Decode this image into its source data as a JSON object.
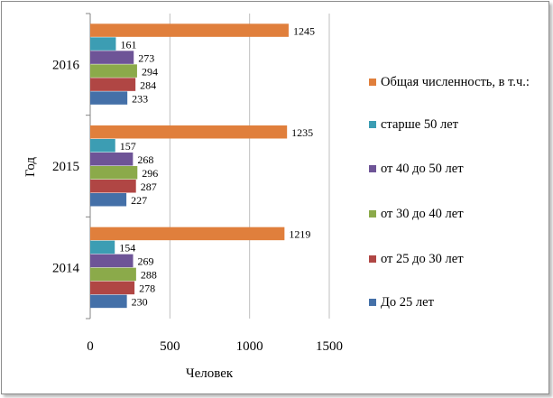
{
  "chart_data": {
    "type": "bar",
    "orientation": "horizontal",
    "title": "",
    "xlabel": "Человек",
    "ylabel": "Год",
    "xlim": [
      0,
      1500
    ],
    "xticks": [
      "0",
      "500",
      "1000",
      "1500"
    ],
    "xtick_values": [
      0,
      500,
      1000,
      1500
    ],
    "grid": true,
    "legend_position": "right",
    "categories": [
      "2016",
      "2015",
      "2014"
    ],
    "series": [
      {
        "name": "Общая численность, в т.ч.:",
        "color": "#E07F3C",
        "values": [
          1245,
          1235,
          1219
        ]
      },
      {
        "name": "старше 50 лет",
        "color": "#3C9DB3",
        "values": [
          161,
          157,
          154
        ]
      },
      {
        "name": "от 40 до 50 лет",
        "color": "#6E5497",
        "values": [
          273,
          268,
          269
        ]
      },
      {
        "name": "от 30 до 40 лет",
        "color": "#8BAA4A",
        "values": [
          294,
          296,
          288
        ]
      },
      {
        "name": "от 25 до 30 лет",
        "color": "#B04644",
        "values": [
          284,
          287,
          278
        ]
      },
      {
        "name": "До 25 лет",
        "color": "#4470A8",
        "values": [
          233,
          227,
          230
        ]
      }
    ]
  }
}
